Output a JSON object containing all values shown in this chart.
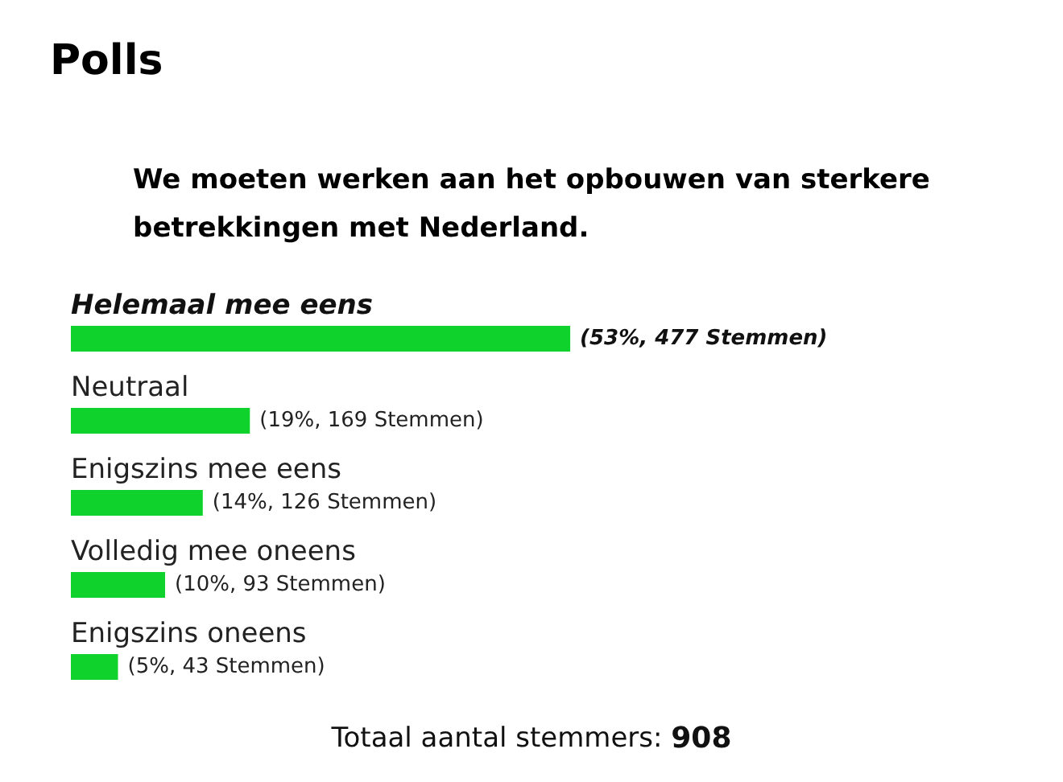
{
  "chart_data": {
    "type": "bar",
    "orientation": "horizontal",
    "title": "Polls",
    "subtitle": "We moeten werken aan het opbouwen van sterkere\nbetrekkingen met Nederland.",
    "categories": [
      "Helemaal mee eens",
      "Neutraal",
      "Enigszins mee eens",
      "Volledig mee oneens",
      "Enigszins oneens"
    ],
    "values": [
      53,
      19,
      14,
      10,
      5
    ],
    "value_labels": [
      "(53%, 477 Stemmen)",
      "(19%, 169 Stemmen)",
      "(14%, 126 Stemmen)",
      "(10%, 93 Stemmen)",
      "(5%, 43 Stemmen)"
    ],
    "color": "#0fd22c",
    "annotations": [
      "Totaal aantal stemmers: 908"
    ],
    "grid": false
  }
}
